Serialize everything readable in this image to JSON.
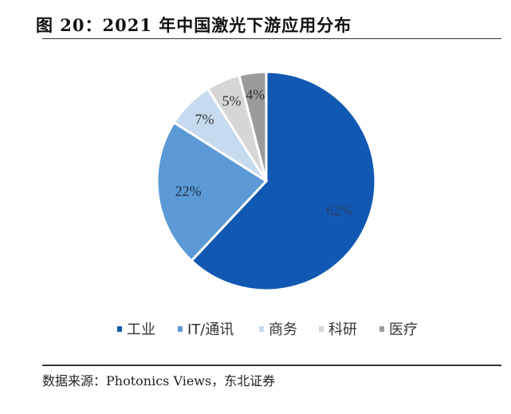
{
  "chart_data": {
    "type": "pie",
    "title": "图 20：2021 年中国激光下游应用分布",
    "categories": [
      "工业",
      "IT/通讯",
      "商务",
      "科研",
      "医疗"
    ],
    "values": [
      62,
      22,
      7,
      5,
      4
    ],
    "data_labels": [
      "62%",
      "22%",
      "7%",
      "5%",
      "4%"
    ],
    "colors": [
      "#1158b2",
      "#5b9ad6",
      "#c6dbef",
      "#d6d6d6",
      "#9b9b9b"
    ],
    "start_angle": "top, clockwise",
    "legend_position": "bottom"
  },
  "source": "数据来源：Photonics Views，东北证券"
}
